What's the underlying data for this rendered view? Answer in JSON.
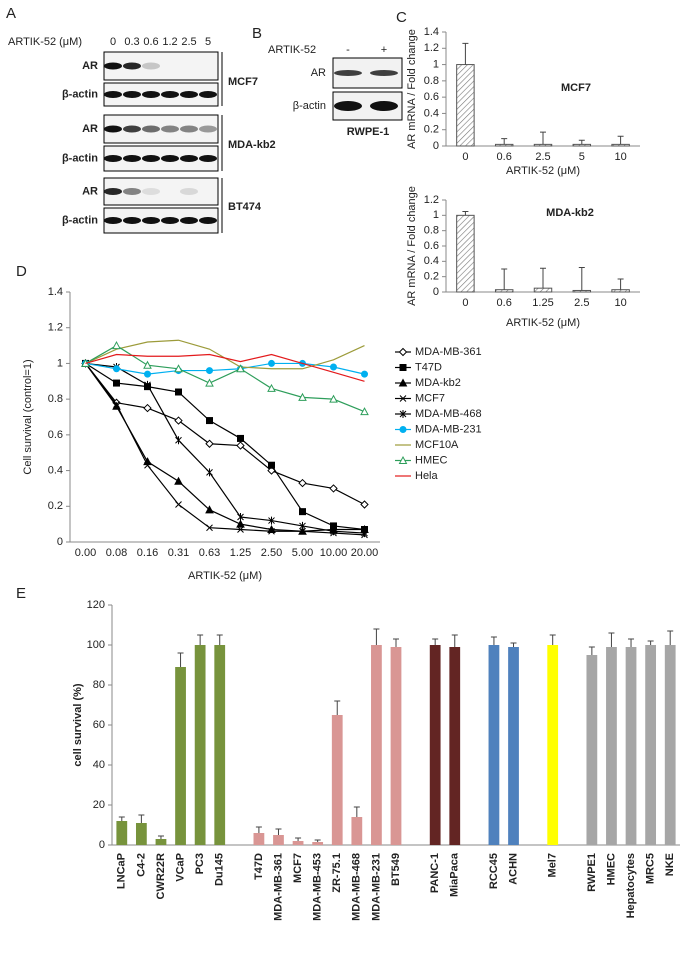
{
  "panel_labels": [
    "A",
    "B",
    "C",
    "D",
    "E"
  ],
  "blots": {
    "A": {
      "treatment_label": "ARTIK-52 (μM)",
      "doses": [
        "0",
        "0.3",
        "0.6",
        "1.2",
        "2.5",
        "5"
      ],
      "rows": [
        {
          "cell_line": "MCF7",
          "bands": [
            "AR",
            "β-actin"
          ]
        },
        {
          "cell_line": "MDA-kb2",
          "bands": [
            "AR",
            "β-actin"
          ]
        },
        {
          "cell_line": "BT474",
          "bands": [
            "AR",
            "β-actin"
          ]
        }
      ]
    },
    "B": {
      "treatment_label": "ARTIK-52",
      "doses": [
        "-",
        "+"
      ],
      "cell_line": "RWPE-1",
      "bands": [
        "AR",
        "β-actin"
      ]
    }
  },
  "chart_data": [
    {
      "type": "bar",
      "title": "MCF7",
      "categories": [
        "0",
        "0.6",
        "2.5",
        "5",
        "10"
      ],
      "values": [
        1,
        0.02,
        0.02,
        0.02,
        0.02
      ],
      "errors": [
        0.26,
        0.07,
        0.15,
        0.05,
        0.1
      ],
      "color": "#ffffff",
      "hatch": true,
      "xlabel": "ARTIK-52 (μM)",
      "ylabel": "AR mRNA / Fold change",
      "ylim": [
        0,
        1.4
      ],
      "yticks": [
        0,
        0.2,
        0.4,
        0.6,
        0.8,
        1,
        1.2,
        1.4
      ]
    },
    {
      "type": "bar",
      "title": "MDA-kb2",
      "categories": [
        "0",
        "0.6",
        "1.25",
        "2.5",
        "10"
      ],
      "values": [
        1,
        0.03,
        0.05,
        0.02,
        0.03
      ],
      "errors": [
        0.05,
        0.27,
        0.26,
        0.3,
        0.14
      ],
      "color": "#ffffff",
      "hatch": true,
      "xlabel": "ARTIK-52 (μM)",
      "ylabel": "AR mRNA / Fold change",
      "ylim": [
        0,
        1.2
      ],
      "yticks": [
        0,
        0.2,
        0.4,
        0.6,
        0.8,
        1,
        1.2
      ]
    },
    {
      "type": "line",
      "categories": [
        "0.00",
        "0.08",
        "0.16",
        "0.31",
        "0.63",
        "1.25",
        "2.50",
        "5.00",
        "10.00",
        "20.00"
      ],
      "xlabel": "ARTIK-52 (μM)",
      "ylabel": "Cell survival (control=1)",
      "legend": "right",
      "ylim": [
        0,
        1.4
      ],
      "yticks": [
        0,
        0.2,
        0.4,
        0.6,
        0.8,
        1,
        1.2,
        1.4
      ],
      "series": [
        {
          "name": "MDA-MB-361",
          "color": "#000000",
          "marker": "diamond-open",
          "values": [
            1,
            0.78,
            0.75,
            0.68,
            0.55,
            0.54,
            0.4,
            0.33,
            0.3,
            0.21
          ]
        },
        {
          "name": "T47D",
          "color": "#000000",
          "marker": "square",
          "values": [
            1,
            0.89,
            0.87,
            0.84,
            0.68,
            0.58,
            0.43,
            0.17,
            0.09,
            0.07
          ]
        },
        {
          "name": "MDA-kb2",
          "color": "#000000",
          "marker": "triangle",
          "values": [
            1,
            0.76,
            0.45,
            0.34,
            0.18,
            0.1,
            0.07,
            0.06,
            0.07,
            0.07
          ]
        },
        {
          "name": "MCF7",
          "color": "#000000",
          "marker": "x",
          "values": [
            1,
            0.77,
            0.43,
            0.21,
            0.08,
            0.07,
            0.06,
            0.06,
            0.05,
            0.04
          ]
        },
        {
          "name": "MDA-MB-468",
          "color": "#000000",
          "marker": "star",
          "values": [
            1,
            0.98,
            0.88,
            0.57,
            0.39,
            0.14,
            0.12,
            0.09,
            0.06,
            0.05
          ]
        },
        {
          "name": "MDA-MB-231",
          "color": "#00b0f0",
          "marker": "circle",
          "values": [
            1,
            0.97,
            0.94,
            0.96,
            0.96,
            0.97,
            1,
            1,
            0.98,
            0.94
          ]
        },
        {
          "name": "MCF10A",
          "color": "#9c9b3a",
          "marker": "none",
          "values": [
            1,
            1.08,
            1.12,
            1.13,
            1.08,
            0.98,
            0.97,
            0.97,
            1.02,
            1.1
          ]
        },
        {
          "name": "HMEC",
          "color": "#2e9e5b",
          "marker": "triangle-open",
          "values": [
            1,
            1.1,
            0.99,
            0.97,
            0.89,
            0.97,
            0.86,
            0.81,
            0.8,
            0.73
          ]
        },
        {
          "name": "Hela",
          "color": "#e31a1c",
          "marker": "none",
          "values": [
            1,
            1.05,
            1.04,
            1.04,
            1.05,
            1.01,
            1.05,
            1,
            0.95,
            0.9
          ]
        }
      ]
    },
    {
      "type": "bar",
      "ylabel": "cell survival (%)",
      "ylim": [
        0,
        120
      ],
      "yticks": [
        0,
        20,
        40,
        60,
        80,
        100,
        120
      ],
      "categories": [
        "LNCaP",
        "C4-2",
        "CWR22R",
        "VCaP",
        "PC3",
        "Du145",
        null,
        "T47D",
        "MDA-MB-361",
        "MCF7",
        "MDA-MB-453",
        "ZR-75.1",
        "MDA-MB-468",
        "MDA-MB-231",
        "BT549",
        null,
        "PANC-1",
        "MiaPaca",
        null,
        "RCC45",
        "ACHN",
        null,
        "Mel7",
        null,
        "RWPE1",
        "HMEC",
        "Hepatocytes",
        "MRC5",
        "NKE"
      ],
      "values": [
        12,
        11,
        3,
        89,
        100,
        100,
        null,
        6,
        5,
        2,
        1.5,
        65,
        14,
        100,
        99,
        null,
        100,
        99,
        null,
        100,
        99,
        null,
        100,
        null,
        95,
        99,
        99,
        100,
        100
      ],
      "errors": [
        2,
        4,
        1.5,
        7,
        5,
        5,
        null,
        3,
        3,
        1.5,
        1,
        7,
        5,
        8,
        4,
        null,
        3,
        6,
        null,
        4,
        2,
        null,
        5,
        null,
        4,
        7,
        4,
        2,
        7
      ],
      "colors": [
        "#77933c",
        "#77933c",
        "#77933c",
        "#77933c",
        "#77933c",
        "#77933c",
        null,
        "#d99694",
        "#d99694",
        "#d99694",
        "#d99694",
        "#d99694",
        "#d99694",
        "#d99694",
        "#d99694",
        null,
        "#632523",
        "#632523",
        null,
        "#4f81bd",
        "#4f81bd",
        null,
        "#ffff00",
        null,
        "#a6a6a6",
        "#a6a6a6",
        "#a6a6a6",
        "#a6a6a6",
        "#a6a6a6"
      ]
    }
  ]
}
